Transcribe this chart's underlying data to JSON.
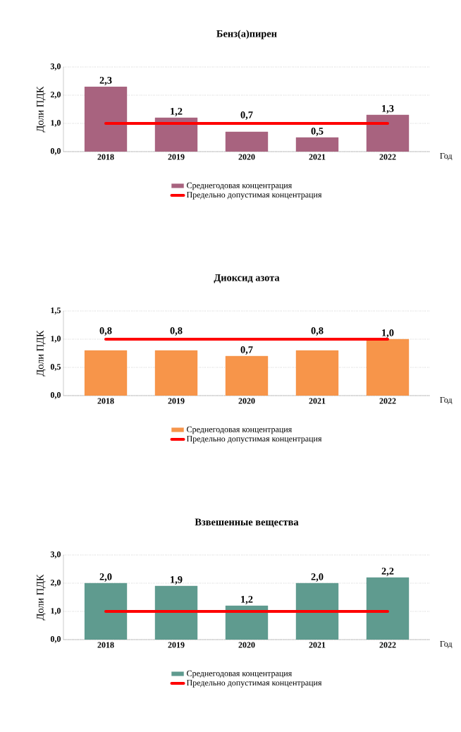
{
  "chart_data": [
    {
      "type": "bar",
      "title": "Бенз(а)пирен",
      "ylabel": "Доли ПДК",
      "xlabel": "Год",
      "categories": [
        "2018",
        "2019",
        "2020",
        "2021",
        "2022"
      ],
      "ylim": [
        0,
        3
      ],
      "yticks": [
        {
          "value": 0,
          "label": "0,0"
        },
        {
          "value": 1,
          "label": "1,0"
        },
        {
          "value": 2,
          "label": "2,0"
        },
        {
          "value": 3,
          "label": "3,0"
        }
      ],
      "grid": "y",
      "legend": "bottom",
      "series": [
        {
          "name": "Среднегодовая концентрация",
          "color": "#a8637f",
          "values": [
            2.3,
            1.2,
            0.7,
            0.5,
            1.3
          ],
          "value_labels": [
            "2,3",
            "1,2",
            "0,7",
            "0,5",
            "1,3"
          ]
        },
        {
          "type": "line",
          "name": "Предельно допустимая концентрация",
          "color": "#ff0000",
          "values": [
            1,
            1,
            1,
            1,
            1
          ]
        }
      ]
    },
    {
      "type": "bar",
      "title": "Диоксид азота",
      "ylabel": "Доли ПДК",
      "xlabel": "Год",
      "categories": [
        "2018",
        "2019",
        "2020",
        "2021",
        "2022"
      ],
      "ylim": [
        0,
        1.5
      ],
      "yticks": [
        {
          "value": 0,
          "label": "0,0"
        },
        {
          "value": 0.5,
          "label": "0,5"
        },
        {
          "value": 1,
          "label": "1,0"
        },
        {
          "value": 1.5,
          "label": "1,5"
        }
      ],
      "grid": "y",
      "legend": "bottom",
      "series": [
        {
          "name": "Среднегодовая концентрация",
          "color": "#f7954a",
          "values": [
            0.8,
            0.8,
            0.7,
            0.8,
            1.0
          ],
          "value_labels": [
            "0,8",
            "0,8",
            "0,7",
            "0,8",
            "1,0"
          ]
        },
        {
          "type": "line",
          "name": "Предельно допустимая концентрация",
          "color": "#ff0000",
          "values": [
            1,
            1,
            1,
            1,
            1
          ]
        }
      ]
    },
    {
      "type": "bar",
      "title": "Взвешенные вещества",
      "ylabel": "Доли ПДК",
      "xlabel": "Год",
      "categories": [
        "2018",
        "2019",
        "2020",
        "2021",
        "2022"
      ],
      "ylim": [
        0,
        3
      ],
      "yticks": [
        {
          "value": 0,
          "label": "0,0"
        },
        {
          "value": 1,
          "label": "1,0"
        },
        {
          "value": 2,
          "label": "2,0"
        },
        {
          "value": 3,
          "label": "3,0"
        }
      ],
      "grid": "y",
      "legend": "bottom",
      "series": [
        {
          "name": "Среднегодовая концентрация",
          "color": "#5f9b8f",
          "values": [
            2.0,
            1.9,
            1.2,
            2.0,
            2.2
          ],
          "value_labels": [
            "2,0",
            "1,9",
            "1,2",
            "2,0",
            "2,2"
          ]
        },
        {
          "type": "line",
          "name": "Предельно допустимая концентрация",
          "color": "#ff0000",
          "values": [
            1,
            1,
            1,
            1,
            1
          ]
        }
      ]
    }
  ]
}
